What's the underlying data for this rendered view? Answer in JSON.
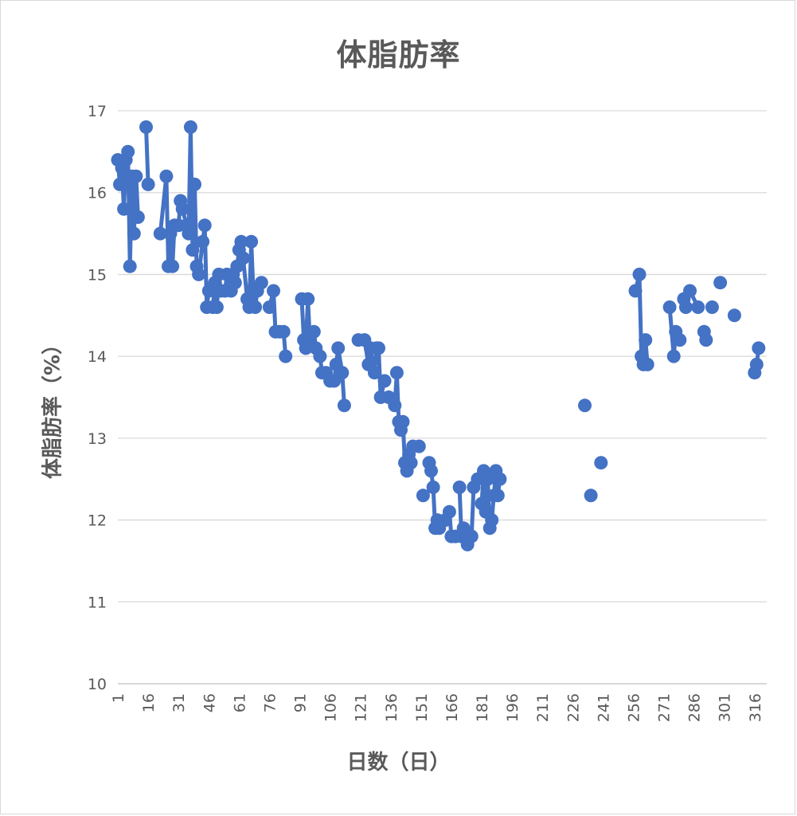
{
  "chart_data": {
    "type": "line",
    "title": "体脂肪率",
    "xlabel": "日数（日）",
    "ylabel": "体脂肪率（%）",
    "xlim": [
      1,
      322
    ],
    "ylim": [
      10,
      17
    ],
    "y_ticks": [
      "10",
      "11",
      "12",
      "13",
      "14",
      "15",
      "16",
      "17"
    ],
    "x_ticks": [
      "1",
      "16",
      "31",
      "46",
      "61",
      "76",
      "91",
      "106",
      "121",
      "136",
      "151",
      "166",
      "181",
      "196",
      "211",
      "226",
      "241",
      "256",
      "271",
      "286",
      "301",
      "316"
    ],
    "grid": true,
    "legend": "none",
    "series_color": "#4472c4",
    "segments": [
      [
        [
          1,
          16.4
        ],
        [
          2,
          16.1
        ],
        [
          3,
          16.3
        ],
        [
          4,
          15.8
        ],
        [
          5,
          16.4
        ],
        [
          6,
          16.5
        ],
        [
          7,
          15.1
        ],
        [
          8,
          16.2
        ],
        [
          9,
          15.5
        ],
        [
          10,
          16.2
        ],
        [
          11,
          15.7
        ]
      ],
      [
        [
          15,
          16.8
        ],
        [
          16,
          16.1
        ]
      ],
      [
        [
          22,
          15.5
        ],
        [
          25,
          16.2
        ],
        [
          26,
          15.1
        ],
        [
          27,
          15.5
        ],
        [
          28,
          15.1
        ],
        [
          29,
          15.6
        ]
      ],
      [
        [
          31,
          15.6
        ],
        [
          32,
          15.9
        ],
        [
          33,
          15.8
        ],
        [
          35,
          15.6
        ],
        [
          36,
          15.5
        ],
        [
          37,
          16.8
        ],
        [
          38,
          15.3
        ],
        [
          39,
          16.1
        ],
        [
          40,
          15.1
        ],
        [
          41,
          15.0
        ],
        [
          43,
          15.4
        ],
        [
          44,
          15.6
        ],
        [
          45,
          14.6
        ],
        [
          46,
          14.8
        ]
      ],
      [
        [
          48,
          14.6
        ],
        [
          49,
          14.9
        ],
        [
          50,
          14.6
        ],
        [
          51,
          15.0
        ],
        [
          52,
          14.8
        ]
      ],
      [
        [
          54,
          14.8
        ],
        [
          55,
          15.0
        ],
        [
          57,
          14.8
        ],
        [
          58,
          15.0
        ],
        [
          59,
          14.9
        ],
        [
          60,
          15.1
        ],
        [
          61,
          15.3
        ],
        [
          62,
          15.4
        ],
        [
          63,
          15.2
        ],
        [
          65,
          14.7
        ],
        [
          66,
          14.6
        ],
        [
          67,
          15.4
        ],
        [
          68,
          14.8
        ],
        [
          69,
          14.6
        ],
        [
          70,
          14.8
        ],
        [
          72,
          14.9
        ]
      ],
      [
        [
          76,
          14.6
        ],
        [
          78,
          14.8
        ],
        [
          79,
          14.3
        ],
        [
          81,
          14.3
        ]
      ],
      [
        [
          83,
          14.3
        ],
        [
          84,
          14.0
        ]
      ],
      [
        [
          92,
          14.7
        ],
        [
          93,
          14.2
        ],
        [
          94,
          14.1
        ],
        [
          95,
          14.7
        ],
        [
          96,
          14.2
        ],
        [
          98,
          14.3
        ],
        [
          99,
          14.1
        ],
        [
          101,
          14.0
        ],
        [
          102,
          13.8
        ]
      ],
      [
        [
          104,
          13.8
        ],
        [
          106,
          13.7
        ],
        [
          108,
          13.7
        ],
        [
          109,
          13.9
        ],
        [
          110,
          14.1
        ],
        [
          112,
          13.8
        ],
        [
          113,
          13.4
        ]
      ],
      [
        [
          120,
          14.2
        ],
        [
          123,
          14.2
        ],
        [
          125,
          13.9
        ],
        [
          126,
          14.1
        ],
        [
          128,
          13.8
        ],
        [
          129,
          14.1
        ],
        [
          130,
          14.1
        ],
        [
          131,
          13.5
        ],
        [
          133,
          13.7
        ]
      ],
      [
        [
          135,
          13.5
        ],
        [
          138,
          13.4
        ],
        [
          139,
          13.8
        ],
        [
          140,
          13.2
        ],
        [
          141,
          13.1
        ],
        [
          142,
          13.2
        ],
        [
          143,
          12.7
        ],
        [
          144,
          12.6
        ],
        [
          145,
          12.8
        ],
        [
          146,
          12.7
        ],
        [
          147,
          12.9
        ]
      ],
      [
        [
          150,
          12.9
        ]
      ],
      [
        [
          152,
          12.3
        ]
      ],
      [
        [
          155,
          12.7
        ],
        [
          156,
          12.6
        ],
        [
          157,
          12.4
        ],
        [
          158,
          11.9
        ],
        [
          159,
          12.0
        ],
        [
          160,
          11.9
        ],
        [
          163,
          12.0
        ],
        [
          165,
          12.1
        ],
        [
          166,
          11.8
        ],
        [
          168,
          11.8
        ]
      ],
      [
        [
          170,
          12.4
        ],
        [
          171,
          11.8
        ],
        [
          172,
          11.9
        ],
        [
          173,
          11.8
        ],
        [
          174,
          11.7
        ],
        [
          176,
          11.8
        ],
        [
          177,
          12.4
        ],
        [
          179,
          12.5
        ]
      ],
      [
        [
          181,
          12.2
        ],
        [
          182,
          12.6
        ],
        [
          183,
          12.1
        ],
        [
          184,
          12.5
        ],
        [
          185,
          11.9
        ],
        [
          186,
          12.0
        ],
        [
          187,
          12.3
        ],
        [
          188,
          12.6
        ],
        [
          189,
          12.3
        ],
        [
          190,
          12.5
        ]
      ],
      [
        [
          232,
          13.4
        ]
      ],
      [
        [
          235,
          12.3
        ]
      ],
      [
        [
          240,
          12.7
        ]
      ],
      [
        [
          257,
          14.8
        ],
        [
          259,
          15.0
        ],
        [
          260,
          14.0
        ],
        [
          261,
          13.9
        ],
        [
          262,
          14.2
        ],
        [
          263,
          13.9
        ]
      ],
      [
        [
          274,
          14.6
        ],
        [
          276,
          14.0
        ],
        [
          277,
          14.3
        ],
        [
          279,
          14.2
        ]
      ],
      [
        [
          281,
          14.7
        ],
        [
          282,
          14.6
        ],
        [
          284,
          14.8
        ],
        [
          288,
          14.6
        ]
      ],
      [
        [
          291,
          14.3
        ],
        [
          292,
          14.2
        ]
      ],
      [
        [
          295,
          14.6
        ]
      ],
      [
        [
          299,
          14.9
        ]
      ],
      [
        [
          306,
          14.5
        ]
      ],
      [
        [
          316,
          13.8
        ],
        [
          317,
          13.9
        ],
        [
          318,
          14.1
        ]
      ]
    ]
  }
}
